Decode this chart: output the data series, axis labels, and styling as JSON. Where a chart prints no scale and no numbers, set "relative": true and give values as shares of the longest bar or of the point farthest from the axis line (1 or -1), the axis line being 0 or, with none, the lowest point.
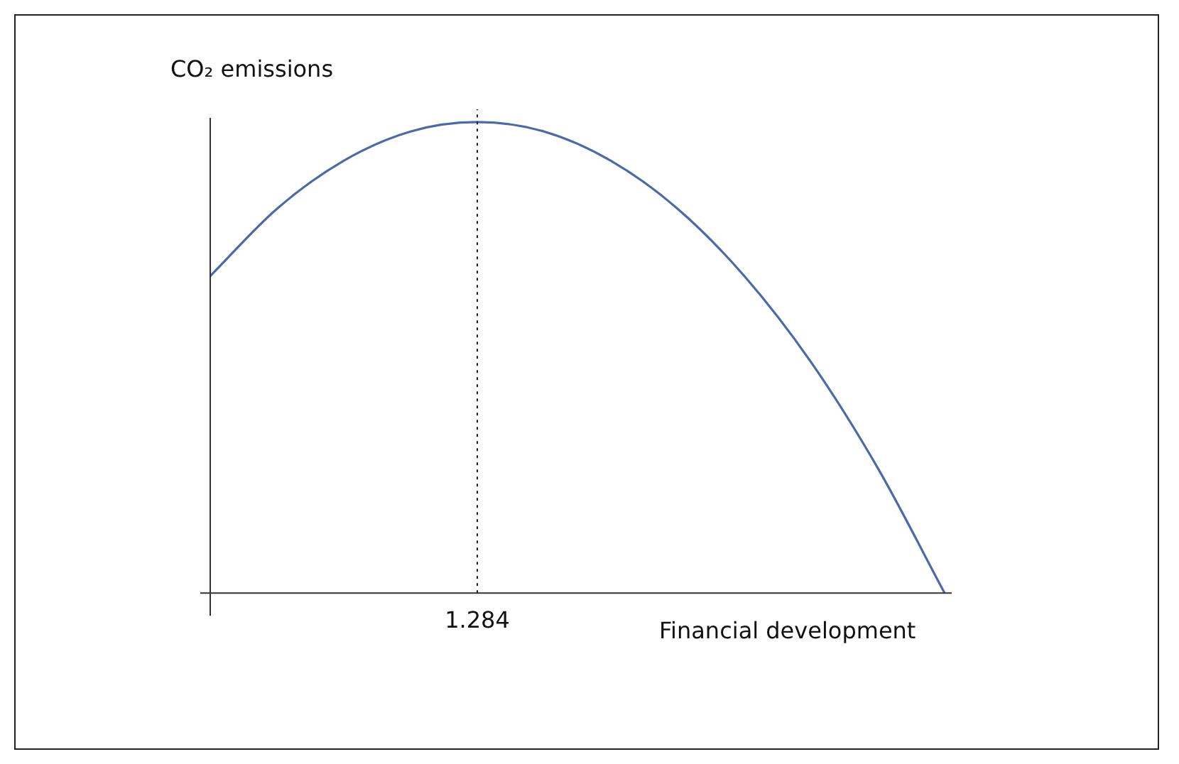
{
  "chart_data": {
    "type": "line",
    "ylabel": "CO₂ emissions",
    "xlabel": "Financial development",
    "relative": true,
    "categories": [
      null,
      null,
      null,
      null,
      null,
      null,
      null,
      null,
      null,
      null,
      null,
      null
    ],
    "series": [
      {
        "color": "#4a6aaa",
        "values": [
          0.673,
          0.816,
          0.918,
          0.98,
          1,
          0.98,
          0.918,
          0.816,
          0.673,
          0.49,
          0.265,
          0
        ]
      }
    ],
    "annotations": [
      "1.284"
    ],
    "grid": false,
    "legend": false,
    "marker": "none",
    "line_style": "solid"
  }
}
